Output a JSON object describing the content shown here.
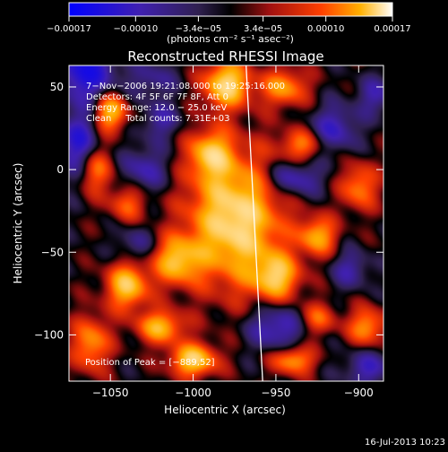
{
  "chart_data": {
    "type": "heatmap",
    "title": "Reconstructed RHESSI Image",
    "xlabel": "Heliocentric X (arcsec)",
    "ylabel": "Heliocentric Y (arcsec)",
    "xlim": [
      -1075,
      -885
    ],
    "ylim": [
      -128,
      63
    ],
    "x_ticks": [
      -1050,
      -1000,
      -950,
      -900
    ],
    "x_tick_labels": [
      "−1050",
      "−1000",
      "−950",
      "−900"
    ],
    "y_ticks": [
      50,
      0,
      -50,
      -100
    ],
    "y_tick_labels": [
      "50",
      "0",
      "−50",
      "−100"
    ],
    "colorbar": {
      "range": [
        -0.00017,
        0.00017
      ],
      "ticks": [
        -0.00017,
        -0.0001,
        -3.4e-05,
        3.4e-05,
        0.0001,
        0.00017
      ],
      "tick_labels": [
        "−0.00017",
        "−0.00010",
        "−3.4e−05",
        "3.4e−05",
        "0.00010",
        "0.00017"
      ],
      "unit_label": "(photons cm⁻² s⁻¹ asec⁻²)"
    },
    "annotations": [
      "7−Nov−2006 19:21:08.000 to 19:25:16.000",
      "Detectors: 4F 5F 6F 7F 8F, Att 0",
      "Energy Range: 12.0 − 25.0 keV",
      "Clean     Total counts: 7.31E+03"
    ],
    "peak_label": "Position of Peak = [−889,52]",
    "peak": [
      -889,
      52
    ],
    "limb_line": [
      [
        -968,
        63
      ],
      [
        -958,
        -128
      ]
    ],
    "grid": false,
    "blobs": [
      [
        -975,
        -30,
        0.95,
        20,
        28
      ],
      [
        -980,
        52,
        0.9,
        10,
        10
      ],
      [
        -1050,
        35,
        0.75,
        7,
        8
      ],
      [
        -1040,
        -70,
        0.8,
        9,
        10
      ],
      [
        -1020,
        -95,
        0.7,
        10,
        7
      ],
      [
        -1000,
        -115,
        0.85,
        10,
        7
      ],
      [
        -1062,
        -105,
        0.6,
        8,
        12
      ],
      [
        -945,
        50,
        0.6,
        10,
        8
      ],
      [
        -935,
        15,
        0.5,
        9,
        7
      ],
      [
        -950,
        -65,
        0.7,
        10,
        10
      ],
      [
        -925,
        -40,
        0.65,
        8,
        8
      ],
      [
        -900,
        -10,
        0.55,
        8,
        10
      ],
      [
        -895,
        -95,
        0.6,
        8,
        8
      ],
      [
        -940,
        -115,
        0.65,
        9,
        6
      ],
      [
        -1060,
        0,
        0.55,
        8,
        10
      ],
      [
        -1040,
        -20,
        0.45,
        8,
        8
      ],
      [
        -990,
        10,
        0.65,
        9,
        10
      ],
      [
        -1010,
        -55,
        0.7,
        10,
        10
      ],
      [
        -925,
        -90,
        0.45,
        8,
        7
      ],
      [
        -1065,
        60,
        -0.7,
        12,
        12
      ],
      [
        -1070,
        15,
        -0.6,
        8,
        15
      ],
      [
        -1030,
        0,
        -0.4,
        10,
        10
      ],
      [
        -1020,
        30,
        -0.35,
        8,
        8
      ],
      [
        -940,
        -5,
        -0.5,
        12,
        8
      ],
      [
        -915,
        25,
        -0.45,
        10,
        10
      ],
      [
        -890,
        45,
        -0.35,
        8,
        8
      ],
      [
        -950,
        -95,
        -0.5,
        12,
        10
      ],
      [
        -1035,
        -45,
        -0.3,
        8,
        8
      ],
      [
        -905,
        -60,
        -0.35,
        8,
        8
      ],
      [
        -1025,
        55,
        -0.3,
        10,
        8
      ],
      [
        -895,
        -120,
        -0.4,
        10,
        8
      ]
    ]
  },
  "footer": {
    "date": "16-Jul-2013 10:23"
  }
}
